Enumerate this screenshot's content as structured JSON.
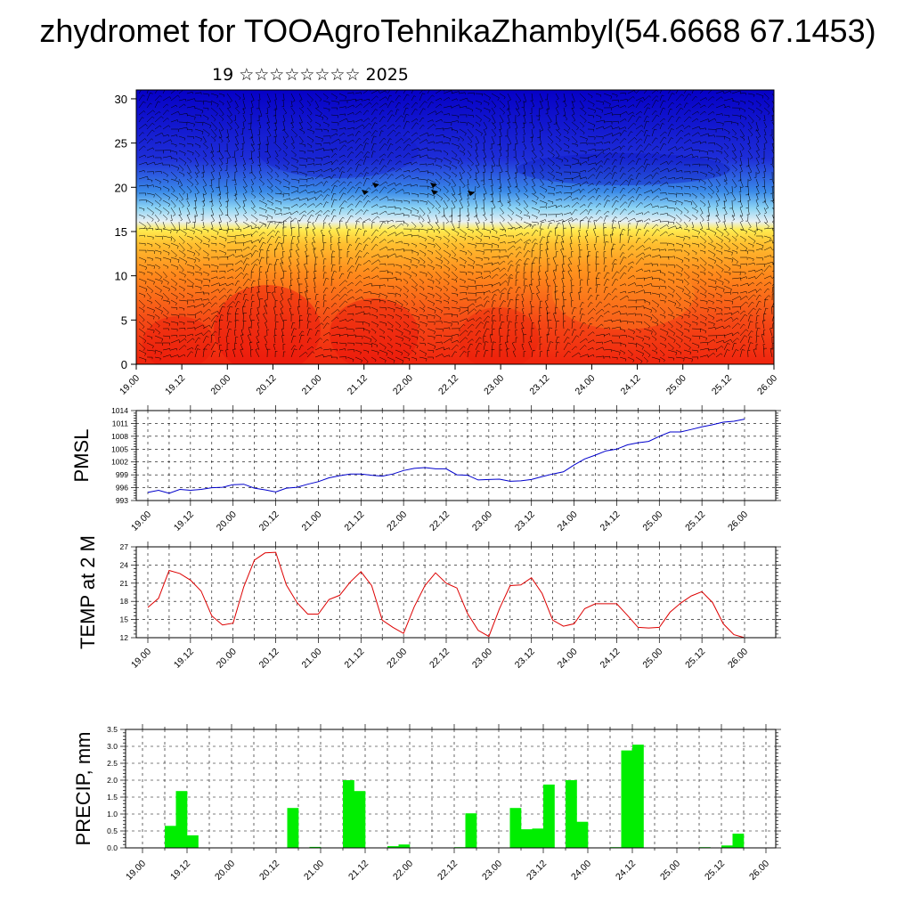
{
  "title": "zhydromet for TOOAgroTehnikaZhambyl(54.6668 67.1453)",
  "subtitle": "19 ☆☆☆☆☆☆☆☆ 2025",
  "chart_data": [
    {
      "type": "heatmap",
      "title": "",
      "ylabel": "",
      "ylim": [
        0,
        31
      ],
      "yticks": [
        0,
        5,
        10,
        15,
        20,
        25,
        30
      ],
      "xticks": [
        "19.00",
        "19.12",
        "20.00",
        "20.12",
        "21.00",
        "21.12",
        "22.00",
        "22.12",
        "23.00",
        "23.12",
        "24.00",
        "24.12",
        "25.00",
        "25.12",
        "26.00"
      ],
      "overlay": "wind-vectors",
      "colormap": [
        "#0a00c8",
        "#2a46e6",
        "#46b4ee",
        "#dcecf4",
        "#ffdc3c",
        "#ff8c1e",
        "#f02a10"
      ]
    },
    {
      "type": "line",
      "ylabel": "PMSL",
      "ylim": [
        993,
        1014
      ],
      "yticks": [
        993,
        996,
        999,
        1002,
        1005,
        1008,
        1011,
        1014
      ],
      "xticks": [
        "19.00",
        "19.12",
        "20.00",
        "20.12",
        "21.00",
        "21.12",
        "22.00",
        "22.12",
        "23.00",
        "23.12",
        "24.00",
        "24.12",
        "25.00",
        "25.12",
        "26.00"
      ],
      "color": "#0000cc",
      "values": [
        994.9,
        995.4,
        994.7,
        995.6,
        995.4,
        995.6,
        996.0,
        996.1,
        996.7,
        996.8,
        995.9,
        995.5,
        995.0,
        995.9,
        996.1,
        996.8,
        997.4,
        998.3,
        998.8,
        999.2,
        999.2,
        998.9,
        998.7,
        999.2,
        1000.0,
        1000.5,
        1000.7,
        1000.4,
        1000.4,
        999.0,
        998.9,
        997.8,
        997.9,
        998.0,
        997.5,
        997.6,
        997.9,
        998.6,
        999.2,
        999.7,
        1001.3,
        1002.7,
        1003.6,
        1004.6,
        1005.0,
        1006.0,
        1006.5,
        1006.8,
        1008.0,
        1009.0,
        1009.0,
        1009.6,
        1010.2,
        1010.7,
        1011.3,
        1011.5,
        1012.0
      ]
    },
    {
      "type": "line",
      "ylabel": "TEMP at 2 M",
      "ylim": [
        12,
        27
      ],
      "yticks": [
        12,
        15,
        18,
        21,
        24,
        27
      ],
      "xticks": [
        "19.00",
        "19.12",
        "20.00",
        "20.12",
        "21.00",
        "21.12",
        "22.00",
        "22.12",
        "23.00",
        "23.12",
        "24.00",
        "24.12",
        "25.00",
        "25.12",
        "26.00"
      ],
      "color": "#dd0000",
      "values": [
        17.0,
        18.5,
        23.1,
        22.6,
        21.5,
        19.7,
        15.6,
        14.1,
        14.4,
        20.4,
        24.8,
        26.0,
        26.1,
        20.7,
        17.8,
        15.9,
        15.9,
        18.3,
        19.0,
        21.2,
        22.9,
        20.6,
        14.9,
        13.7,
        12.7,
        17.1,
        20.6,
        22.7,
        21.0,
        20.2,
        16.0,
        13.2,
        12.2,
        16.8,
        20.6,
        20.7,
        21.9,
        19.3,
        14.9,
        13.9,
        14.3,
        16.8,
        17.6,
        17.6,
        17.6,
        15.7,
        13.7,
        13.6,
        13.7,
        16.2,
        17.7,
        18.9,
        19.6,
        17.8,
        14.3,
        12.5,
        12.0
      ]
    },
    {
      "type": "bar",
      "ylabel": "PRECIP, mm",
      "ylim": [
        0,
        3.5
      ],
      "yticks": [
        "0.0",
        "0.5",
        "1.0",
        "1.5",
        "2.0",
        "2.5",
        "3.0",
        "3.5"
      ],
      "xticks": [
        "19.00",
        "19.12",
        "20.00",
        "20.12",
        "21.00",
        "21.12",
        "22.00",
        "22.12",
        "23.00",
        "23.12",
        "24.00",
        "24.12",
        "25.00",
        "25.12",
        "26.00"
      ],
      "color": "#00ee00",
      "values": [
        0,
        0,
        0.65,
        1.68,
        0.37,
        0,
        0,
        0,
        0,
        0,
        0,
        0,
        0,
        1.18,
        0,
        0.03,
        0,
        0,
        2.0,
        1.68,
        0,
        0,
        0.05,
        0.1,
        0,
        0,
        0,
        0,
        0.02,
        1.02,
        0,
        0,
        0,
        1.18,
        0.55,
        0.57,
        1.87,
        0,
        2.0,
        0.77,
        0,
        0,
        0.02,
        2.88,
        3.05,
        0,
        0,
        0,
        0,
        0,
        0.02,
        0,
        0.07,
        0.42,
        0,
        0
      ]
    }
  ]
}
